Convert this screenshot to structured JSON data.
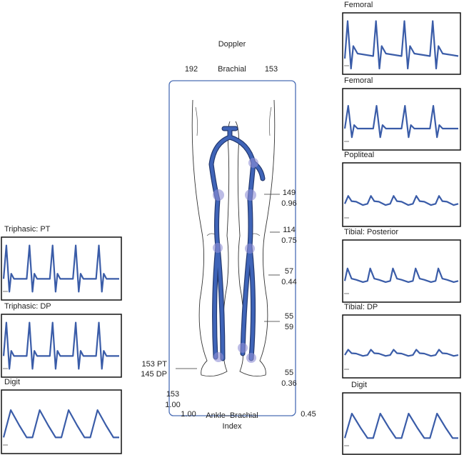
{
  "title": "Doppler",
  "brachial": {
    "left": "192",
    "label": "Brachial",
    "right": "153"
  },
  "right_waveforms": [
    "Femoral",
    "Femoral",
    "Popliteal",
    "Tibial: Posterior",
    "Tibial: DP",
    "Digit"
  ],
  "left_waveforms": [
    "Triphasic: PT",
    "Triphasic: DP",
    "Digit"
  ],
  "right_pressures": [
    [
      "149",
      "0.96"
    ],
    [
      "114",
      "0.75"
    ],
    [
      "57",
      "0.44"
    ],
    [
      "55",
      "59"
    ],
    [
      "55",
      "0.36"
    ]
  ],
  "left_ankle": [
    "153 PT",
    "145 DP"
  ],
  "left_index": [
    "153",
    "1.00"
  ],
  "abi": {
    "left": "1.00",
    "label": [
      "Ankle–Brachial",
      "Index"
    ],
    "right": "0.45"
  }
}
